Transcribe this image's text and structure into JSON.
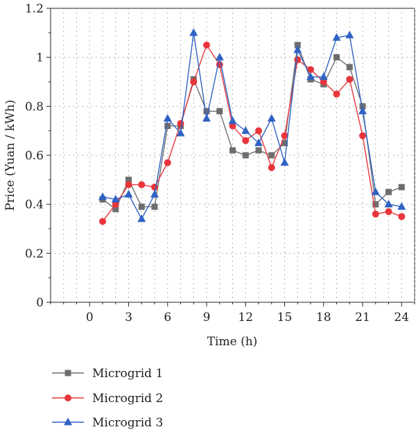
{
  "chart_data": {
    "type": "line",
    "xlabel": "Time (h)",
    "ylabel": "Price (Yuan / kWh)",
    "xlim": [
      -3,
      25
    ],
    "ylim": [
      0,
      1.2
    ],
    "xticks": [
      0,
      3,
      6,
      9,
      12,
      15,
      18,
      21,
      24
    ],
    "xtick_labels": [
      "0",
      "3",
      "6",
      "9",
      "12",
      "15",
      "18",
      "21",
      "24"
    ],
    "yticks": [
      0,
      0.2,
      0.4,
      0.6,
      0.8,
      1.0,
      1.2
    ],
    "ytick_labels": [
      "0",
      "0.2",
      "0.4",
      "0.6",
      "0.8",
      "1",
      "1.2"
    ],
    "grid": true,
    "legend_position": "below-plot",
    "x": [
      1,
      2,
      3,
      4,
      5,
      6,
      7,
      8,
      9,
      10,
      11,
      12,
      13,
      14,
      15,
      16,
      17,
      18,
      19,
      20,
      21,
      22,
      23,
      24
    ],
    "series": [
      {
        "name": "Microgrid 1",
        "color": "#6e6e6e",
        "marker": "square",
        "values": [
          0.42,
          0.38,
          0.5,
          0.39,
          0.39,
          0.72,
          0.72,
          0.91,
          0.78,
          0.78,
          0.62,
          0.6,
          0.62,
          0.6,
          0.65,
          1.05,
          0.91,
          0.89,
          1.0,
          0.96,
          0.8,
          0.4,
          0.45,
          0.47
        ]
      },
      {
        "name": "Microgrid 2",
        "color": "#e8353b",
        "marker": "circle",
        "values": [
          0.33,
          0.4,
          0.48,
          0.48,
          0.47,
          0.57,
          0.73,
          0.9,
          1.05,
          0.97,
          0.72,
          0.66,
          0.7,
          0.55,
          0.68,
          0.99,
          0.95,
          0.9,
          0.85,
          0.91,
          0.68,
          0.36,
          0.37,
          0.35
        ]
      },
      {
        "name": "Microgrid 3",
        "color": "#2f62c4",
        "marker": "triangle",
        "values": [
          0.43,
          0.42,
          0.44,
          0.34,
          0.44,
          0.75,
          0.69,
          1.1,
          0.75,
          1.0,
          0.74,
          0.7,
          0.65,
          0.75,
          0.57,
          1.03,
          0.92,
          0.92,
          1.08,
          1.09,
          0.78,
          0.45,
          0.4,
          0.39
        ]
      }
    ]
  }
}
